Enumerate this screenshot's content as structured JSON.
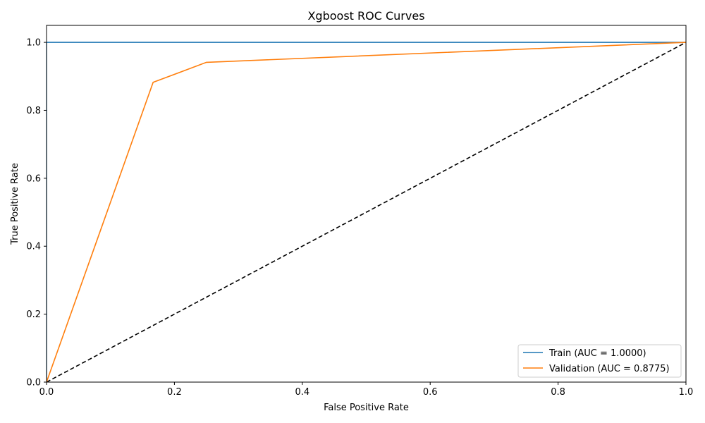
{
  "chart_data": {
    "type": "line",
    "title": "Xgboost ROC Curves",
    "xlabel": "False Positive Rate",
    "ylabel": "True Positive Rate",
    "xlim": [
      0,
      1
    ],
    "ylim": [
      0,
      1.05
    ],
    "xticks": [
      0.0,
      0.2,
      0.4,
      0.6,
      0.8,
      1.0
    ],
    "yticks": [
      0.0,
      0.2,
      0.4,
      0.6,
      0.8,
      1.0
    ],
    "xtick_labels": [
      "0.0",
      "0.2",
      "0.4",
      "0.6",
      "0.8",
      "1.0"
    ],
    "ytick_labels": [
      "0.0",
      "0.2",
      "0.4",
      "0.6",
      "0.8",
      "1.0"
    ],
    "grid": false,
    "legend_position": "lower-right",
    "series": [
      {
        "name": "Train (AUC = 1.0000)",
        "color": "#1f77b4",
        "style": "solid",
        "x": [
          0.0,
          0.0,
          1.0
        ],
        "y": [
          0.0,
          1.0,
          1.0
        ]
      },
      {
        "name": "Validation (AUC = 0.8775)",
        "color": "#ff7f0e",
        "style": "solid",
        "x": [
          0.0,
          0.1667,
          0.25,
          1.0
        ],
        "y": [
          0.0,
          0.8824,
          0.9412,
          1.0
        ]
      },
      {
        "color": "#000000",
        "style": "dashed",
        "x": [
          0.0,
          1.0
        ],
        "y": [
          0.0,
          1.0
        ]
      }
    ]
  }
}
